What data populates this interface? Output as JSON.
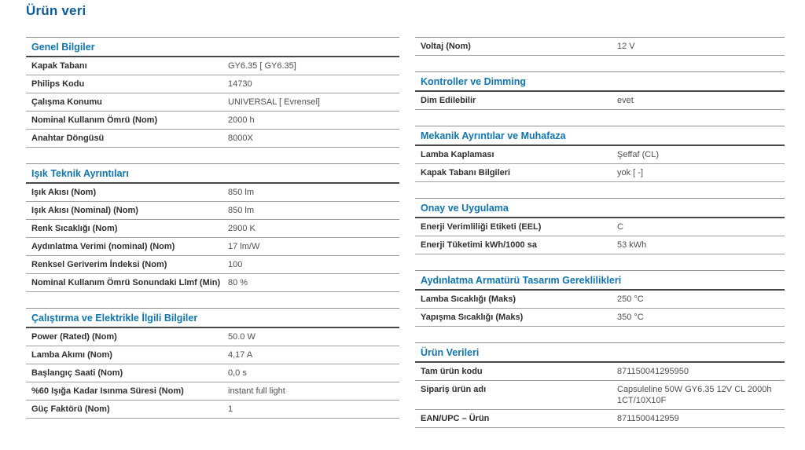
{
  "page": {
    "title": "Ürün veri"
  },
  "colors": {
    "title_blue": "#0b5d9d",
    "section_header_blue": "#0f76b2",
    "label_text": "#2f2f2f",
    "value_text": "#4f4f4f",
    "row_rule_gray": "#a0a0a0",
    "section_top_rule_gray": "#8f8f8f",
    "header_rule_dark": "#474747",
    "background": "#ffffff"
  },
  "columns": [
    {
      "sections": [
        {
          "header": "Genel Bilgiler",
          "rows": [
            {
              "label": "Kapak Tabanı",
              "value": "GY6.35 [ GY6.35]"
            },
            {
              "label": "Philips Kodu",
              "value": "14730"
            },
            {
              "label": "Çalışma Konumu",
              "value": "UNIVERSAL [ Evrensel]"
            },
            {
              "label": "Nominal Kullanım Ömrü (Nom)",
              "value": "2000 h"
            },
            {
              "label": "Anahtar Döngüsü",
              "value": "8000X"
            }
          ]
        },
        {
          "header": "Işık Teknik Ayrıntıları",
          "rows": [
            {
              "label": "Işık Akısı (Nom)",
              "value": "850 lm"
            },
            {
              "label": "Işık Akısı (Nominal) (Nom)",
              "value": "850 lm"
            },
            {
              "label": "Renk Sıcaklığı (Nom)",
              "value": "2900 K"
            },
            {
              "label": "Aydınlatma Verimi (nominal) (Nom)",
              "value": "17 lm/W"
            },
            {
              "label": "Renksel Geriverim İndeksi (Nom)",
              "value": "100"
            },
            {
              "label": "Nominal Kullanım Ömrü Sonundaki Llmf (Min)",
              "value": "80 %"
            }
          ]
        },
        {
          "header": "Çalıştırma ve Elektrikle İlgili Bilgiler",
          "rows": [
            {
              "label": "Power (Rated) (Nom)",
              "value": "50.0 W"
            },
            {
              "label": "Lamba Akımı (Nom)",
              "value": "4,17 A"
            },
            {
              "label": "Başlangıç Saati (Nom)",
              "value": "0,0 s"
            },
            {
              "label": "%60 Işığa Kadar Isınma Süresi (Nom)",
              "value": "instant full light"
            },
            {
              "label": "Güç Faktörü (Nom)",
              "value": "1"
            }
          ]
        }
      ]
    },
    {
      "sections": [
        {
          "header": null,
          "rows": [
            {
              "label": "Voltaj (Nom)",
              "value": "12 V"
            }
          ]
        },
        {
          "header": "Kontroller ve Dimming",
          "rows": [
            {
              "label": "Dim Edilebilir",
              "value": "evet"
            }
          ]
        },
        {
          "header": "Mekanik Ayrıntılar ve Muhafaza",
          "rows": [
            {
              "label": "Lamba Kaplaması",
              "value": "Şeffaf (CL)"
            },
            {
              "label": "Kapak Tabanı Bilgileri",
              "value": "yok [ -]"
            }
          ]
        },
        {
          "header": "Onay ve Uygulama",
          "rows": [
            {
              "label": "Enerji Verimliliği Etiketi (EEL)",
              "value": "C"
            },
            {
              "label": "Enerji Tüketimi kWh/1000 sa",
              "value": "53 kWh"
            }
          ]
        },
        {
          "header": "Aydınlatma Armatürü Tasarım Gereklilikleri",
          "rows": [
            {
              "label": "Lamba Sıcaklığı (Maks)",
              "value": "250 °C"
            },
            {
              "label": "Yapışma Sıcaklığı (Maks)",
              "value": "350 °C"
            }
          ]
        },
        {
          "header": "Ürün Verileri",
          "rows": [
            {
              "label": "Tam ürün kodu",
              "value": "871150041295950"
            },
            {
              "label": "Sipariş ürün adı",
              "value": "Capsuleline 50W GY6.35 12V CL 2000h 1CT/10X10F"
            },
            {
              "label": "EAN/UPC – Ürün",
              "value": "8711500412959"
            }
          ]
        }
      ]
    }
  ]
}
